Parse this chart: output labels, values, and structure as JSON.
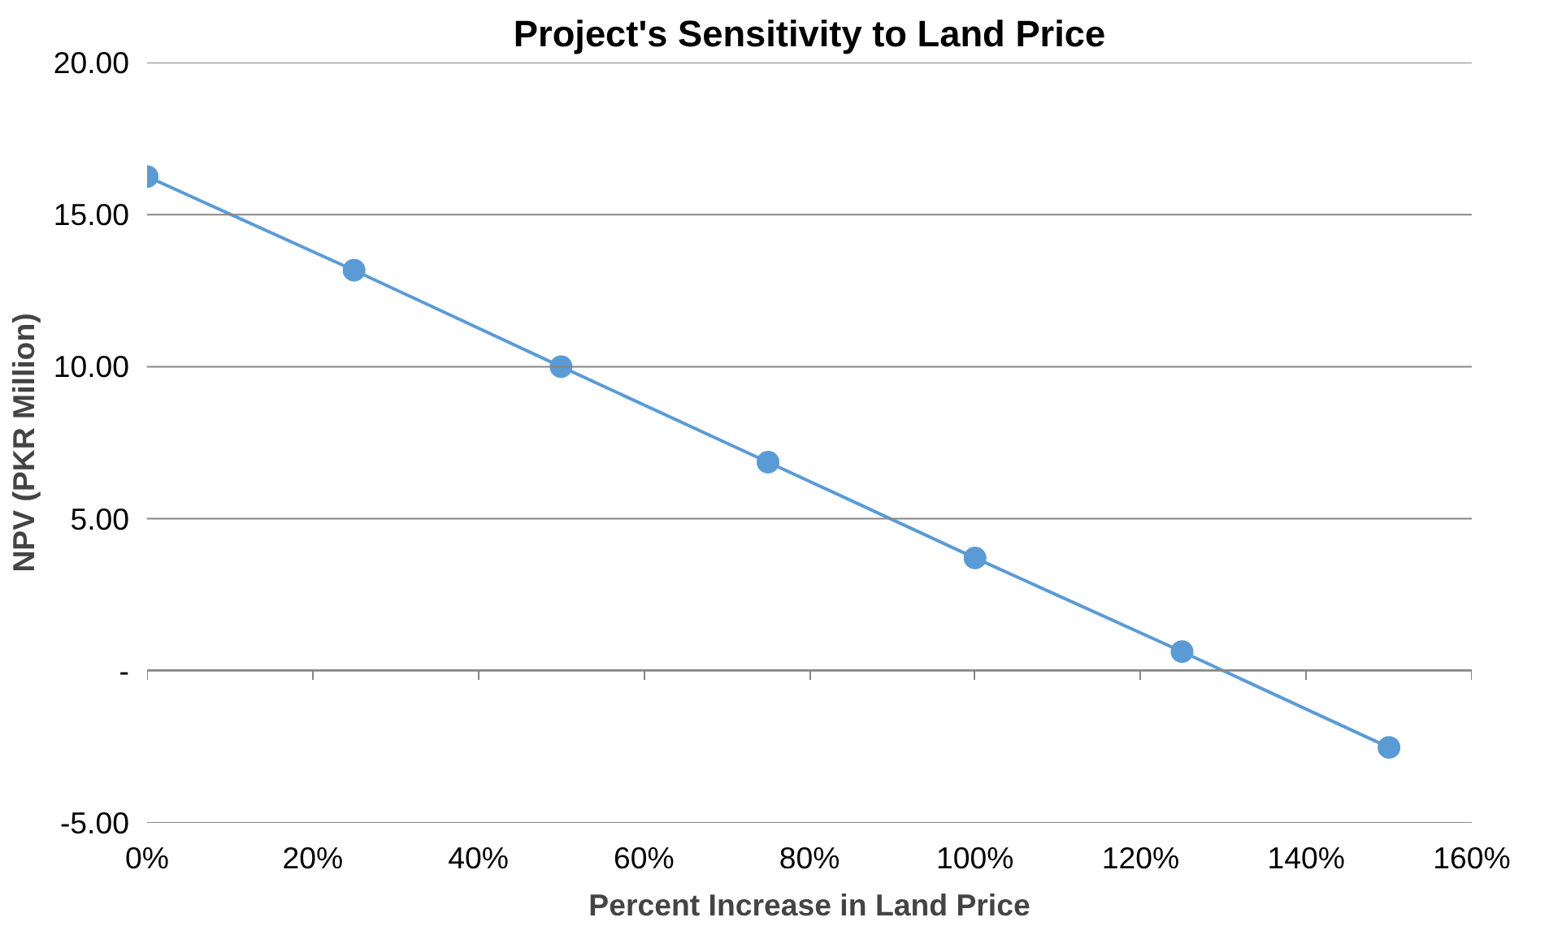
{
  "chart_data": {
    "type": "line",
    "title": "Project's Sensitivity to Land Price",
    "xlabel": "Percent Increase in Land Price",
    "ylabel": "NPV (PKR Million)",
    "x": [
      0,
      25,
      50,
      75,
      100,
      125,
      150
    ],
    "series": [
      {
        "color": "#5b9bd5",
        "values": [
          16.25,
          13.17,
          10.0,
          6.86,
          3.71,
          0.63,
          -2.52
        ]
      }
    ],
    "xlim": [
      0,
      160
    ],
    "xticks": [
      {
        "value": 0,
        "label": "0%"
      },
      {
        "value": 20,
        "label": "20%"
      },
      {
        "value": 40,
        "label": "40%"
      },
      {
        "value": 60,
        "label": "60%"
      },
      {
        "value": 80,
        "label": "80%"
      },
      {
        "value": 100,
        "label": "100%"
      },
      {
        "value": 120,
        "label": "120%"
      },
      {
        "value": 140,
        "label": "140%"
      },
      {
        "value": 160,
        "label": "160%"
      }
    ],
    "ylim": [
      -5,
      20
    ],
    "yticks": [
      {
        "value": -5,
        "label": "-5.00"
      },
      {
        "value": 0,
        "label": "-"
      },
      {
        "value": 5,
        "label": "5.00"
      },
      {
        "value": 10,
        "label": "10.00"
      },
      {
        "value": 15,
        "label": "15.00"
      },
      {
        "value": 20,
        "label": "20.00"
      }
    ],
    "grid": "y",
    "marker": "circle",
    "line_style": "solid"
  }
}
